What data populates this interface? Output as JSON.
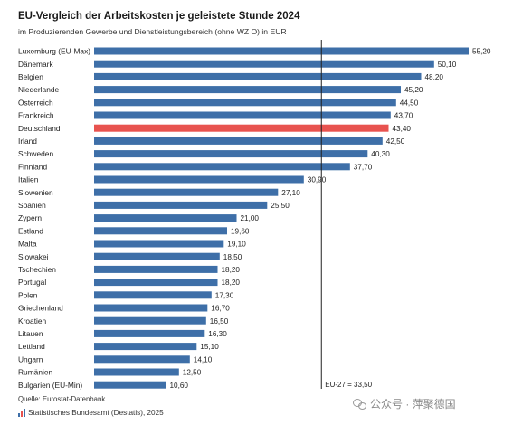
{
  "chart_data": {
    "type": "bar",
    "orientation": "horizontal",
    "title": "EU-Vergleich der Arbeitskosten je geleistete Stunde 2024",
    "subtitle": "im Produzierenden Gewerbe und Dienstleistungsbereich (ohne WZ O) in EUR",
    "categories": [
      "Luxemburg (EU-Max)",
      "Dänemark",
      "Belgien",
      "Niederlande",
      "Österreich",
      "Frankreich",
      "Deutschland",
      "Irland",
      "Schweden",
      "Finnland",
      "Italien",
      "Slowenien",
      "Spanien",
      "Zypern",
      "Estland",
      "Malta",
      "Slowakei",
      "Tschechien",
      "Portugal",
      "Polen",
      "Griechenland",
      "Kroatien",
      "Litauen",
      "Lettland",
      "Ungarn",
      "Rumänien",
      "Bulgarien (EU-Min)"
    ],
    "values": [
      55.2,
      50.1,
      48.2,
      45.2,
      44.5,
      43.7,
      43.4,
      42.5,
      40.3,
      37.7,
      30.9,
      27.1,
      25.5,
      21.0,
      19.6,
      19.1,
      18.5,
      18.2,
      18.2,
      17.3,
      16.7,
      16.5,
      16.3,
      15.1,
      14.1,
      12.5,
      10.6
    ],
    "value_labels": [
      "55,20",
      "50,10",
      "48,20",
      "45,20",
      "44,50",
      "43,70",
      "43,40",
      "42,50",
      "40,30",
      "37,70",
      "30,90",
      "27,10",
      "25,50",
      "21,00",
      "19,60",
      "19,10",
      "18,50",
      "18,20",
      "18,20",
      "17,30",
      "16,70",
      "16,50",
      "16,30",
      "15,10",
      "14,10",
      "12,50",
      "10,60"
    ],
    "highlight": "Deutschland",
    "reference_line": {
      "value": 33.5,
      "label": "EU-27 = 33,50"
    },
    "xlim": [
      0,
      56
    ],
    "colors": {
      "bar": "#3e6fa8",
      "highlight": "#e8534f",
      "reference": "#222222"
    },
    "grid": false
  },
  "source": "Quelle: Eurostat-Datenbank",
  "footer": {
    "text": "Statistisches Bundesamt (Destatis), 2025",
    "logo": "destatis-logo-icon"
  },
  "watermark": {
    "icon": "wechat-icon",
    "text": "公众号 · 萍聚德国"
  }
}
